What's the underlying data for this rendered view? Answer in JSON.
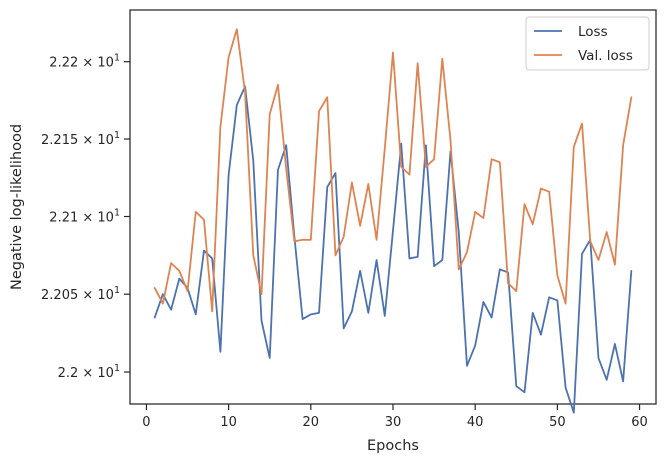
{
  "chart_data": {
    "type": "line",
    "title": "",
    "xlabel": "Epochs",
    "ylabel": "Negative log-likelihood",
    "xlim": [
      -2,
      62
    ],
    "ylim": [
      21.9795,
      22.2335
    ],
    "y_scale": "log",
    "grid": false,
    "legend_position": "top-right",
    "x_ticks": [
      0,
      10,
      20,
      30,
      40,
      50,
      60
    ],
    "x_tick_labels": [
      "0",
      "10",
      "20",
      "30",
      "40",
      "50",
      "60"
    ],
    "y_ticks": [
      {
        "value": 22.0,
        "mant": "2.2",
        "exp": "1"
      },
      {
        "value": 22.05,
        "mant": "2.205",
        "exp": "1"
      },
      {
        "value": 22.1,
        "mant": "2.21",
        "exp": "1"
      },
      {
        "value": 22.15,
        "mant": "2.215",
        "exp": "1"
      },
      {
        "value": 22.2,
        "mant": "2.22",
        "exp": "1"
      }
    ],
    "x": [
      1,
      2,
      3,
      4,
      5,
      6,
      7,
      8,
      9,
      10,
      11,
      12,
      13,
      14,
      15,
      16,
      17,
      18,
      19,
      20,
      21,
      22,
      23,
      24,
      25,
      26,
      27,
      28,
      29,
      30,
      31,
      32,
      33,
      34,
      35,
      36,
      37,
      38,
      39,
      40,
      41,
      42,
      43,
      44,
      45,
      46,
      47,
      48,
      49,
      50,
      51,
      52,
      53,
      54,
      55,
      56,
      57,
      58,
      59
    ],
    "series": [
      {
        "name": "Loss",
        "color": "#4c72b0",
        "values": [
          22.035,
          22.05,
          22.04,
          22.06,
          22.054,
          22.037,
          22.078,
          22.073,
          22.013,
          22.127,
          22.172,
          22.184,
          22.136,
          22.033,
          22.009,
          22.13,
          22.146,
          22.087,
          22.034,
          22.037,
          22.038,
          22.119,
          22.128,
          22.028,
          22.039,
          22.065,
          22.038,
          22.072,
          22.036,
          22.091,
          22.147,
          22.073,
          22.074,
          22.146,
          22.068,
          22.072,
          22.142,
          22.09,
          22.004,
          22.017,
          22.045,
          22.035,
          22.066,
          22.064,
          21.991,
          21.987,
          22.038,
          22.024,
          22.048,
          22.046,
          21.99,
          21.974,
          22.076,
          22.085,
          22.009,
          21.995,
          22.018,
          21.994,
          22.065
        ]
      },
      {
        "name": "Val. loss",
        "color": "#dd8452",
        "values": [
          22.054,
          22.044,
          22.07,
          22.065,
          22.052,
          22.103,
          22.098,
          22.039,
          22.158,
          22.203,
          22.221,
          22.18,
          22.075,
          22.05,
          22.166,
          22.185,
          22.131,
          22.084,
          22.085,
          22.085,
          22.168,
          22.177,
          22.075,
          22.087,
          22.122,
          22.094,
          22.121,
          22.085,
          22.144,
          22.206,
          22.132,
          22.127,
          22.199,
          22.132,
          22.137,
          22.202,
          22.149,
          22.066,
          22.077,
          22.103,
          22.099,
          22.137,
          22.135,
          22.057,
          22.052,
          22.108,
          22.095,
          22.118,
          22.116,
          22.062,
          22.044,
          22.145,
          22.16,
          22.084,
          22.072,
          22.09,
          22.069,
          22.146,
          22.177
        ]
      }
    ]
  }
}
